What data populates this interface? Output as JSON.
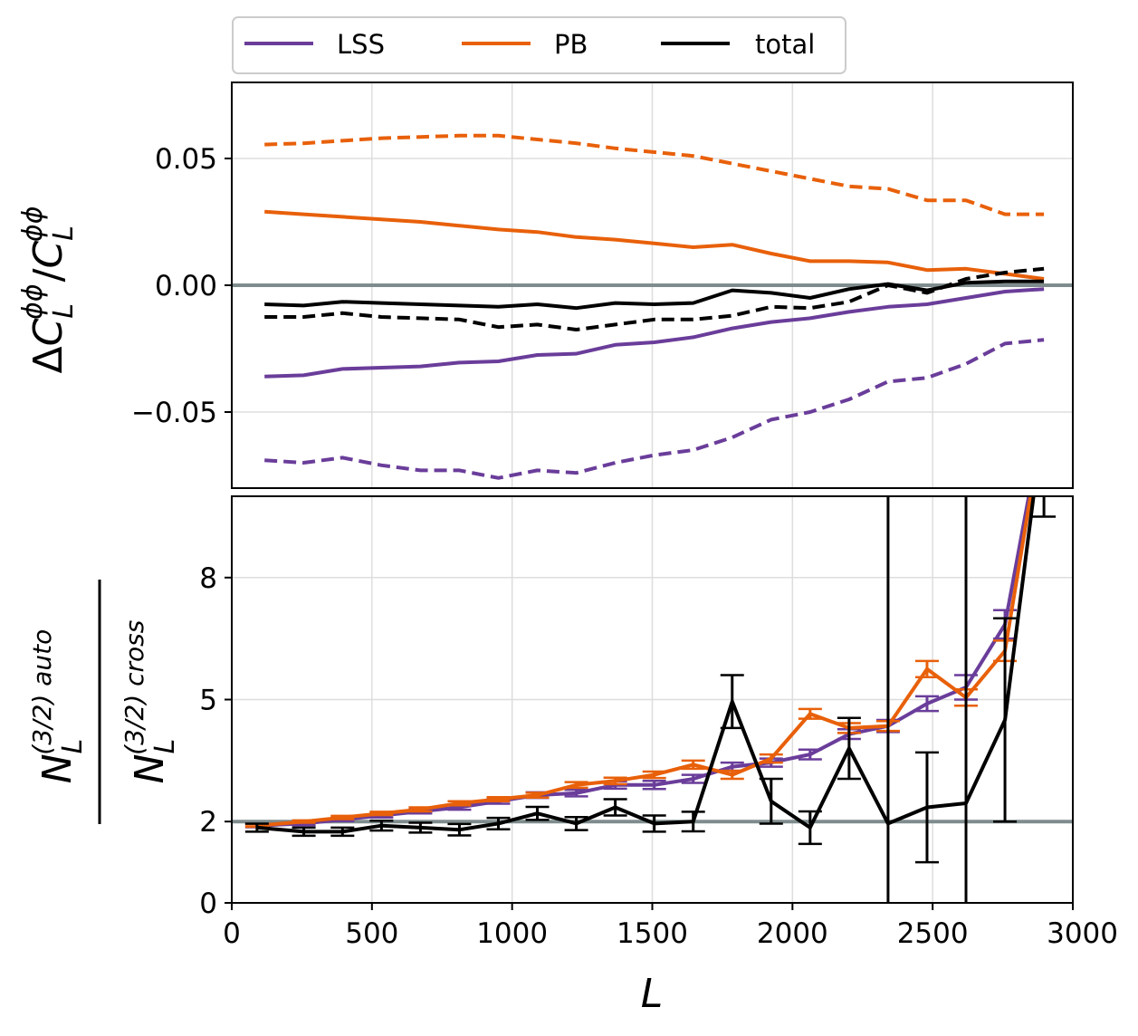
{
  "chart_data": [
    {
      "type": "line",
      "panel": "top",
      "ylabel": "ΔC_L^{φφ}/C_L^{φφ}",
      "ylabel_parts": {
        "delta": "Δ",
        "base": "C",
        "sub": "L",
        "sup": "ϕϕ",
        "slash": "/"
      },
      "xlim": [
        0,
        3000
      ],
      "ylim": [
        -0.08,
        0.08
      ],
      "yticks": [
        -0.05,
        0.0,
        0.05
      ],
      "ytick_labels": [
        "−0.05",
        "0.00",
        "0.05"
      ],
      "grid": true,
      "reference_line": {
        "y": 0.0,
        "color": "#7f8c8d"
      },
      "x": [
        117,
        256,
        395,
        534,
        673,
        812,
        951,
        1090,
        1229,
        1368,
        1507,
        1646,
        1785,
        1924,
        2063,
        2202,
        2341,
        2480,
        2619,
        2758,
        2897
      ],
      "series": [
        {
          "name": "LSS",
          "style": "solid",
          "color": "#6a3d9a",
          "values": [
            -0.036,
            -0.0355,
            -0.033,
            -0.0325,
            -0.032,
            -0.0305,
            -0.03,
            -0.0275,
            -0.027,
            -0.0235,
            -0.0225,
            -0.0205,
            -0.017,
            -0.0145,
            -0.013,
            -0.0105,
            -0.0085,
            -0.0075,
            -0.005,
            -0.0025,
            -0.0015
          ]
        },
        {
          "name": "LSS",
          "style": "dashed",
          "color": "#6a3d9a",
          "values": [
            -0.069,
            -0.07,
            -0.068,
            -0.071,
            -0.073,
            -0.073,
            -0.076,
            -0.073,
            -0.074,
            -0.07,
            -0.067,
            -0.065,
            -0.06,
            -0.053,
            -0.05,
            -0.045,
            -0.038,
            -0.0365,
            -0.031,
            -0.023,
            -0.0215
          ]
        },
        {
          "name": "PB",
          "style": "solid",
          "color": "#e8600a",
          "values": [
            0.029,
            0.028,
            0.027,
            0.026,
            0.025,
            0.0235,
            0.022,
            0.021,
            0.019,
            0.018,
            0.0165,
            0.015,
            0.016,
            0.0125,
            0.0095,
            0.0095,
            0.009,
            0.006,
            0.0065,
            0.0045,
            0.0025
          ]
        },
        {
          "name": "PB",
          "style": "dashed",
          "color": "#e8600a",
          "values": [
            0.0555,
            0.056,
            0.057,
            0.058,
            0.0585,
            0.059,
            0.059,
            0.0575,
            0.056,
            0.054,
            0.0525,
            0.051,
            0.048,
            0.045,
            0.042,
            0.039,
            0.038,
            0.0335,
            0.0335,
            0.028,
            0.028
          ]
        },
        {
          "name": "total",
          "style": "solid",
          "color": "#000000",
          "values": [
            -0.0075,
            -0.008,
            -0.0065,
            -0.007,
            -0.0075,
            -0.008,
            -0.0085,
            -0.0075,
            -0.009,
            -0.007,
            -0.0075,
            -0.007,
            -0.002,
            -0.003,
            -0.005,
            -0.0015,
            0.0005,
            -0.002,
            0.001,
            0.0015,
            0.0015
          ]
        },
        {
          "name": "total",
          "style": "dashed",
          "color": "#000000",
          "values": [
            -0.0125,
            -0.0125,
            -0.011,
            -0.0125,
            -0.013,
            -0.0135,
            -0.0165,
            -0.0155,
            -0.0175,
            -0.0155,
            -0.0135,
            -0.0135,
            -0.012,
            -0.0085,
            -0.009,
            -0.0065,
            0.0,
            -0.003,
            0.0025,
            0.005,
            0.0065
          ]
        }
      ]
    },
    {
      "type": "line",
      "panel": "bottom",
      "xlabel": "L",
      "ylabel": "N_L^{(3/2) auto} / N_L^{(3/2) cross}",
      "ylabel_parts": {
        "base": "N",
        "sub": "L",
        "num_sup": "(3/2) auto",
        "den_sup": "(3/2) cross"
      },
      "xlim": [
        0,
        3000
      ],
      "ylim": [
        0,
        10
      ],
      "xticks": [
        0,
        500,
        1000,
        1500,
        2000,
        2500,
        3000
      ],
      "xtick_labels": [
        "0",
        "500",
        "1000",
        "1500",
        "2000",
        "2500",
        "3000"
      ],
      "yticks": [
        0,
        2,
        5,
        8
      ],
      "ytick_labels": [
        "0",
        "2",
        "5",
        "8"
      ],
      "grid": true,
      "reference_line": {
        "y": 2.0,
        "color": "#7f8c8d"
      },
      "x": [
        90,
        257,
        395,
        534,
        673,
        812,
        951,
        1090,
        1229,
        1368,
        1507,
        1646,
        1785,
        1924,
        2063,
        2202,
        2341,
        2480,
        2619,
        2758,
        2897
      ],
      "series": [
        {
          "name": "LSS",
          "color": "#6a3d9a",
          "values": [
            1.9,
            1.95,
            2.05,
            2.15,
            2.25,
            2.35,
            2.5,
            2.65,
            2.7,
            2.9,
            2.9,
            3.05,
            3.35,
            3.45,
            3.65,
            4.15,
            4.35,
            4.9,
            5.3,
            6.85,
            12.0
          ],
          "errors": [
            0.04,
            0.04,
            0.04,
            0.05,
            0.05,
            0.06,
            0.06,
            0.07,
            0.08,
            0.09,
            0.1,
            0.1,
            0.1,
            0.1,
            0.12,
            0.12,
            0.15,
            0.18,
            0.3,
            0.35,
            0.4
          ]
        },
        {
          "name": "PB",
          "color": "#e8600a",
          "values": [
            1.9,
            2.0,
            2.1,
            2.2,
            2.3,
            2.45,
            2.55,
            2.65,
            2.9,
            3.0,
            3.15,
            3.4,
            3.15,
            3.55,
            4.65,
            4.3,
            4.35,
            5.75,
            5.05,
            6.2,
            12.0
          ],
          "errors": [
            0.03,
            0.03,
            0.04,
            0.04,
            0.05,
            0.05,
            0.05,
            0.06,
            0.07,
            0.08,
            0.08,
            0.1,
            0.1,
            0.1,
            0.12,
            0.12,
            0.12,
            0.2,
            0.2,
            0.25,
            0.3
          ]
        },
        {
          "name": "total",
          "color": "#000000",
          "values": [
            1.85,
            1.75,
            1.75,
            1.9,
            1.85,
            1.8,
            1.95,
            2.2,
            1.95,
            2.35,
            1.95,
            2.0,
            4.95,
            2.5,
            1.85,
            3.8,
            1.95,
            2.35,
            2.45,
            4.5,
            12.0
          ],
          "errors": [
            0.1,
            0.1,
            0.1,
            0.12,
            0.12,
            0.14,
            0.14,
            0.16,
            0.16,
            0.2,
            0.2,
            0.24,
            0.65,
            0.55,
            0.4,
            0.75,
            12.0,
            1.35,
            12.0,
            2.5,
            2.5
          ]
        }
      ]
    }
  ],
  "legend": {
    "position": "top-left",
    "entries": [
      {
        "label": "LSS",
        "color": "#6a3d9a"
      },
      {
        "label": "PB",
        "color": "#e8600a"
      },
      {
        "label": "total",
        "color": "#000000"
      }
    ]
  }
}
